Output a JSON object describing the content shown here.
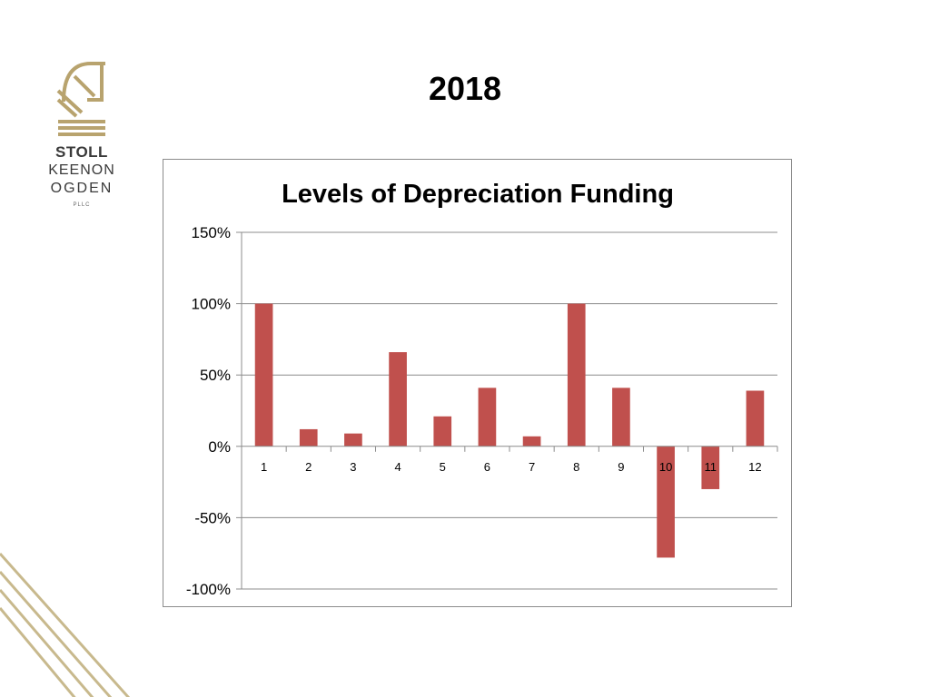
{
  "slide": {
    "title": "2018"
  },
  "logo": {
    "line1": "STOLL",
    "line2": "KEENON",
    "line3": "OGDEN",
    "line4": "PLLC",
    "color": "#b8a36e"
  },
  "chart_data": {
    "type": "bar",
    "title": "Levels of Depreciation Funding",
    "xlabel": "",
    "ylabel": "",
    "categories": [
      "1",
      "2",
      "3",
      "4",
      "5",
      "6",
      "7",
      "8",
      "9",
      "10",
      "11",
      "12"
    ],
    "values": [
      100,
      12,
      9,
      66,
      21,
      41,
      7,
      100,
      41,
      -78,
      -30,
      39
    ],
    "value_unit": "%",
    "ylim": [
      -100,
      150
    ],
    "yticks": [
      150,
      100,
      50,
      0,
      -50,
      -100
    ],
    "ytick_labels": [
      "150%",
      "100%",
      "50%",
      "0%",
      "-50%",
      "-100%"
    ],
    "grid": true,
    "legend": "none",
    "bar_color": "#c0504d"
  }
}
